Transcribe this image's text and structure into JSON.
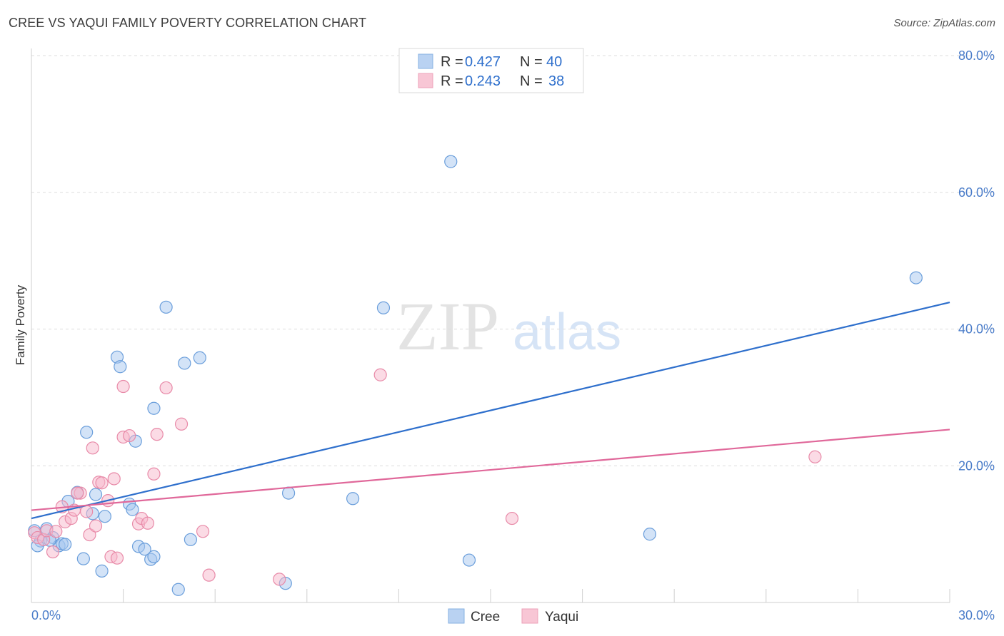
{
  "title": "CREE VS YAQUI FAMILY POVERTY CORRELATION CHART",
  "source": "Source: ZipAtlas.com",
  "watermark": {
    "zip": "ZIP",
    "atlas": "atlas"
  },
  "colors": {
    "cree_fill": "#a8c8f0",
    "cree_stroke": "#6a9edb",
    "cree_line": "#2e6fcc",
    "yaqui_fill": "#f7b8cb",
    "yaqui_stroke": "#e88aa8",
    "yaqui_line": "#e0689a",
    "tick_text": "#4a7cc9",
    "grid": "#dddddd"
  },
  "legend": {
    "cree": {
      "r_label": "R = ",
      "r_value": "0.427",
      "n_label": "N = ",
      "n_value": "40"
    },
    "yaqui": {
      "r_label": "R = ",
      "r_value": "0.243",
      "n_label": "N = ",
      "n_value": "38"
    }
  },
  "chart_data": {
    "type": "scatter",
    "title": "CREE VS YAQUI FAMILY POVERTY CORRELATION CHART",
    "xlabel": "",
    "ylabel": "Family Poverty",
    "xlim": [
      0,
      30
    ],
    "ylim": [
      0,
      80
    ],
    "x_tick_labels": [
      "0.0%",
      "30.0%"
    ],
    "y_ticks": [
      20,
      40,
      60,
      80
    ],
    "y_tick_labels": [
      "20.0%",
      "40.0%",
      "60.0%",
      "80.0%"
    ],
    "grid": true,
    "legend_position": "top-center",
    "series": [
      {
        "name": "Cree",
        "r": 0.427,
        "n": 40,
        "trend": [
          [
            0,
            12.3
          ],
          [
            30,
            43.9
          ]
        ],
        "points": [
          [
            0.1,
            10.5
          ],
          [
            0.3,
            9.0
          ],
          [
            0.5,
            10.8
          ],
          [
            0.7,
            9.5
          ],
          [
            0.9,
            8.3
          ],
          [
            1.0,
            8.6
          ],
          [
            1.2,
            14.8
          ],
          [
            1.5,
            16.1
          ],
          [
            1.7,
            6.4
          ],
          [
            1.8,
            24.9
          ],
          [
            2.0,
            13.0
          ],
          [
            2.1,
            15.8
          ],
          [
            2.4,
            12.6
          ],
          [
            2.8,
            35.9
          ],
          [
            2.9,
            34.5
          ],
          [
            3.2,
            14.4
          ],
          [
            3.3,
            13.6
          ],
          [
            3.4,
            23.6
          ],
          [
            3.5,
            8.2
          ],
          [
            3.7,
            7.8
          ],
          [
            3.9,
            6.3
          ],
          [
            4.0,
            6.7
          ],
          [
            4.0,
            28.4
          ],
          [
            4.4,
            43.2
          ],
          [
            4.8,
            1.9
          ],
          [
            5.0,
            35.0
          ],
          [
            5.2,
            9.2
          ],
          [
            5.5,
            35.8
          ],
          [
            8.3,
            2.8
          ],
          [
            8.4,
            16.0
          ],
          [
            10.5,
            15.2
          ],
          [
            11.5,
            43.1
          ],
          [
            13.7,
            64.5
          ],
          [
            14.3,
            6.2
          ],
          [
            20.2,
            10.0
          ],
          [
            28.9,
            47.5
          ],
          [
            0.2,
            8.3
          ],
          [
            1.1,
            8.5
          ],
          [
            0.6,
            9.1
          ],
          [
            2.3,
            4.6
          ]
        ]
      },
      {
        "name": "Yaqui",
        "r": 0.243,
        "n": 38,
        "trend": [
          [
            0,
            13.5
          ],
          [
            30,
            25.3
          ]
        ],
        "points": [
          [
            0.1,
            10.2
          ],
          [
            0.2,
            9.5
          ],
          [
            0.4,
            9.2
          ],
          [
            0.5,
            10.5
          ],
          [
            0.7,
            7.4
          ],
          [
            0.8,
            10.4
          ],
          [
            1.0,
            14.0
          ],
          [
            1.1,
            11.8
          ],
          [
            1.3,
            12.3
          ],
          [
            1.4,
            13.5
          ],
          [
            1.6,
            16.0
          ],
          [
            1.8,
            13.3
          ],
          [
            1.9,
            9.9
          ],
          [
            2.0,
            22.6
          ],
          [
            2.1,
            11.2
          ],
          [
            2.2,
            17.6
          ],
          [
            2.3,
            17.5
          ],
          [
            2.5,
            14.9
          ],
          [
            2.6,
            6.7
          ],
          [
            2.7,
            18.1
          ],
          [
            2.8,
            6.5
          ],
          [
            3.0,
            24.2
          ],
          [
            3.0,
            31.6
          ],
          [
            3.2,
            24.4
          ],
          [
            3.5,
            11.5
          ],
          [
            3.6,
            12.3
          ],
          [
            3.8,
            11.6
          ],
          [
            4.0,
            18.8
          ],
          [
            4.1,
            24.6
          ],
          [
            4.4,
            31.4
          ],
          [
            4.9,
            26.1
          ],
          [
            5.6,
            10.4
          ],
          [
            5.8,
            4.0
          ],
          [
            8.1,
            3.4
          ],
          [
            11.4,
            33.3
          ],
          [
            15.7,
            12.3
          ],
          [
            25.6,
            21.3
          ],
          [
            1.5,
            16.0
          ]
        ]
      }
    ]
  }
}
